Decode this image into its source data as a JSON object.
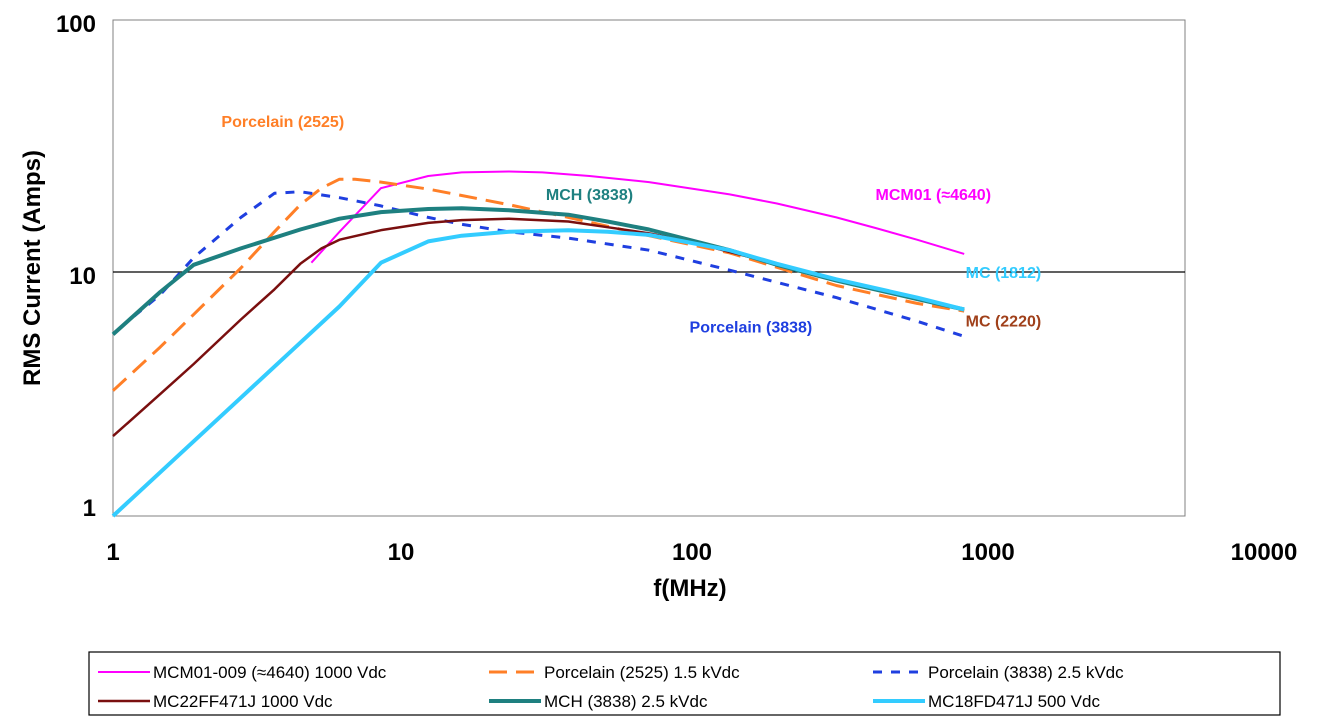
{
  "chart_data": {
    "type": "line",
    "xlabel": "f(MHz)",
    "ylabel": "RMS Current (Amps)",
    "xscale": "log",
    "yscale": "log",
    "xlim": [
      1,
      10000
    ],
    "ylim": [
      1,
      100
    ],
    "x_ticks": [
      "1",
      "10",
      "100",
      "1000",
      "10000"
    ],
    "y_ticks": [
      "1",
      "10",
      "100"
    ],
    "grid": "horizontal line at 10 only",
    "legend_position": "bottom",
    "series": [
      {
        "name": "MCM01-009 (≈4640) 1000 Vdc",
        "color": "#ff00ff",
        "dash": "solid",
        "points": [
          [
            5.5,
            10.5
          ],
          [
            7,
            14
          ],
          [
            10,
            21
          ],
          [
            15,
            23.5
          ],
          [
            20,
            24.3
          ],
          [
            30,
            24.5
          ],
          [
            40,
            24.3
          ],
          [
            60,
            23.5
          ],
          [
            100,
            22.2
          ],
          [
            200,
            19.8
          ],
          [
            300,
            18.2
          ],
          [
            500,
            16
          ],
          [
            700,
            14.5
          ],
          [
            1000,
            13
          ],
          [
            1500,
            11.4
          ]
        ]
      },
      {
        "name": "Porcelain (2525) 1.5 kVdc",
        "color": "#ff7f27",
        "dash": "dashed",
        "points": [
          [
            1,
            3.2
          ],
          [
            1.5,
            4.8
          ],
          [
            2,
            6.5
          ],
          [
            3,
            10
          ],
          [
            4,
            14
          ],
          [
            5,
            18
          ],
          [
            6,
            21
          ],
          [
            7,
            22.8
          ],
          [
            8,
            22.8
          ],
          [
            10,
            22.2
          ],
          [
            15,
            20.8
          ],
          [
            20,
            19.6
          ],
          [
            30,
            18
          ],
          [
            50,
            16
          ],
          [
            100,
            13.5
          ],
          [
            200,
            11.5
          ],
          [
            500,
            8.5
          ],
          [
            1000,
            7.2
          ],
          [
            1500,
            6.7
          ]
        ]
      },
      {
        "name": "Porcelain (3838) 2.5 kVdc",
        "color": "#1f3fe0",
        "dash": "short-dash",
        "points": [
          [
            1.2,
            6.4
          ],
          [
            1.5,
            7.8
          ],
          [
            2,
            11
          ],
          [
            3,
            16
          ],
          [
            4,
            20
          ],
          [
            5,
            20.3
          ],
          [
            7,
            19.2
          ],
          [
            10,
            17.8
          ],
          [
            15,
            16
          ],
          [
            20,
            15
          ],
          [
            30,
            14
          ],
          [
            50,
            13.2
          ],
          [
            100,
            11.8
          ],
          [
            200,
            9.8
          ],
          [
            500,
            7.6
          ],
          [
            1000,
            6.1
          ],
          [
            1500,
            5.3
          ]
        ]
      },
      {
        "name": "MC22FF471J  1000 Vdc",
        "color": "#7a0f0f",
        "dash": "solid",
        "points": [
          [
            1,
            2.1
          ],
          [
            1.5,
            3.1
          ],
          [
            2,
            4.1
          ],
          [
            3,
            6.2
          ],
          [
            4,
            8.2
          ],
          [
            5,
            10.4
          ],
          [
            6,
            12
          ],
          [
            7,
            13
          ],
          [
            10,
            14.2
          ],
          [
            15,
            15.2
          ],
          [
            20,
            15.6
          ],
          [
            30,
            15.8
          ],
          [
            50,
            15.4
          ],
          [
            70,
            14.6
          ],
          [
            100,
            13.8
          ],
          [
            150,
            12.6
          ],
          [
            200,
            11.6
          ],
          [
            300,
            10.4
          ],
          [
            500,
            9
          ],
          [
            1000,
            7.5
          ],
          [
            1500,
            6.8
          ]
        ]
      },
      {
        "name": "MCH (3838) 2.5 kVdc",
        "color": "#1e8080",
        "dash": "solid",
        "points": [
          [
            1,
            5.4
          ],
          [
            1.5,
            8
          ],
          [
            2,
            10.3
          ],
          [
            3,
            12
          ],
          [
            5,
            14.3
          ],
          [
            7,
            15.8
          ],
          [
            10,
            16.8
          ],
          [
            15,
            17.3
          ],
          [
            20,
            17.4
          ],
          [
            30,
            17.1
          ],
          [
            50,
            16.4
          ],
          [
            70,
            15.4
          ],
          [
            100,
            14.3
          ],
          [
            200,
            11.8
          ],
          [
            300,
            10.3
          ],
          [
            500,
            8.9
          ],
          [
            1000,
            7.5
          ],
          [
            1500,
            6.8
          ]
        ]
      },
      {
        "name": "MC18FD471J  500 Vdc",
        "color": "#33ccff",
        "dash": "solid",
        "points": [
          [
            1,
            1
          ],
          [
            1.5,
            1.5
          ],
          [
            2,
            2
          ],
          [
            3,
            3
          ],
          [
            5,
            5
          ],
          [
            7,
            7
          ],
          [
            10,
            10.5
          ],
          [
            15,
            12.8
          ],
          [
            20,
            13.5
          ],
          [
            30,
            14
          ],
          [
            50,
            14.2
          ],
          [
            70,
            14
          ],
          [
            100,
            13.6
          ],
          [
            200,
            11.8
          ],
          [
            300,
            10.4
          ],
          [
            500,
            9
          ],
          [
            1000,
            7.6
          ],
          [
            1500,
            6.8
          ]
        ]
      }
    ],
    "annotations": [
      {
        "text": "Porcelain (2525)",
        "color": "#ff7f27",
        "x": 4.3,
        "y": 37
      },
      {
        "text": "MCH (3838)",
        "color": "#1e8080",
        "x": 60,
        "y": 18.8
      },
      {
        "text": "MCM01 (≈4640)",
        "color": "#ff00ff",
        "x": 1150,
        "y": 18.8
      },
      {
        "text": "MC (1812)",
        "color": "#33ccff",
        "x": 2100,
        "y": 9.1
      },
      {
        "text": "MC (2220)",
        "color": "#a0401a",
        "x": 2100,
        "y": 5.8
      },
      {
        "text": "Porcelain (3838)",
        "color": "#1f3fe0",
        "x": 240,
        "y": 5.5
      }
    ]
  }
}
